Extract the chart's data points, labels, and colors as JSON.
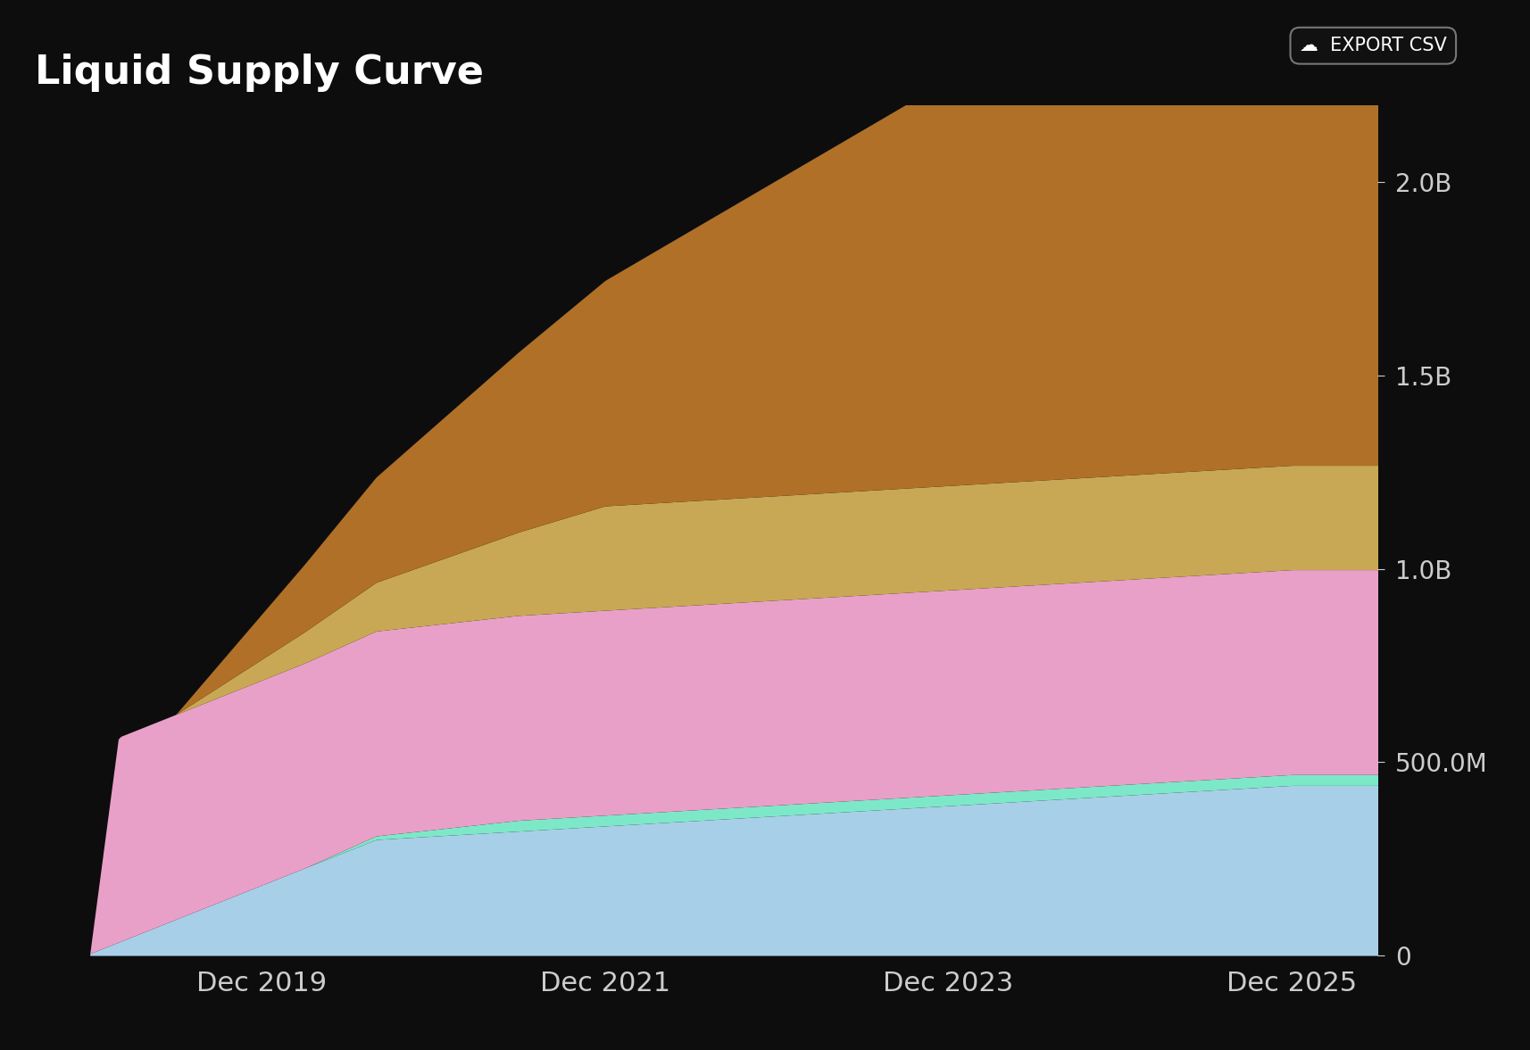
{
  "title": "Liquid Supply Curve",
  "background_color": "#0d0d0d",
  "text_color": "#ffffff",
  "axis_label_color": "#cccccc",
  "ytick_labels": [
    "0",
    "500.0M",
    "1.0B",
    "1.5B",
    "2.0B"
  ],
  "ytick_values": [
    0,
    500000000,
    1000000000,
    1500000000,
    2000000000
  ],
  "xtick_labels": [
    "Dec 2019",
    "Dec 2021",
    "Dec 2023",
    "Dec 2025"
  ],
  "xtick_positions": [
    12,
    36,
    60,
    84
  ],
  "xlim": [
    -2,
    90
  ],
  "ylim": [
    0,
    2200000000
  ],
  "colors": {
    "layer1_blue": "#a8cfe8",
    "layer2_teal": "#7de8c8",
    "layer3_pink": "#e8a0c8",
    "layer4_tan": "#c8a855",
    "layer5_brown": "#b07028"
  },
  "export_btn_color": "#1a1a1a",
  "export_btn_border": "#666666"
}
